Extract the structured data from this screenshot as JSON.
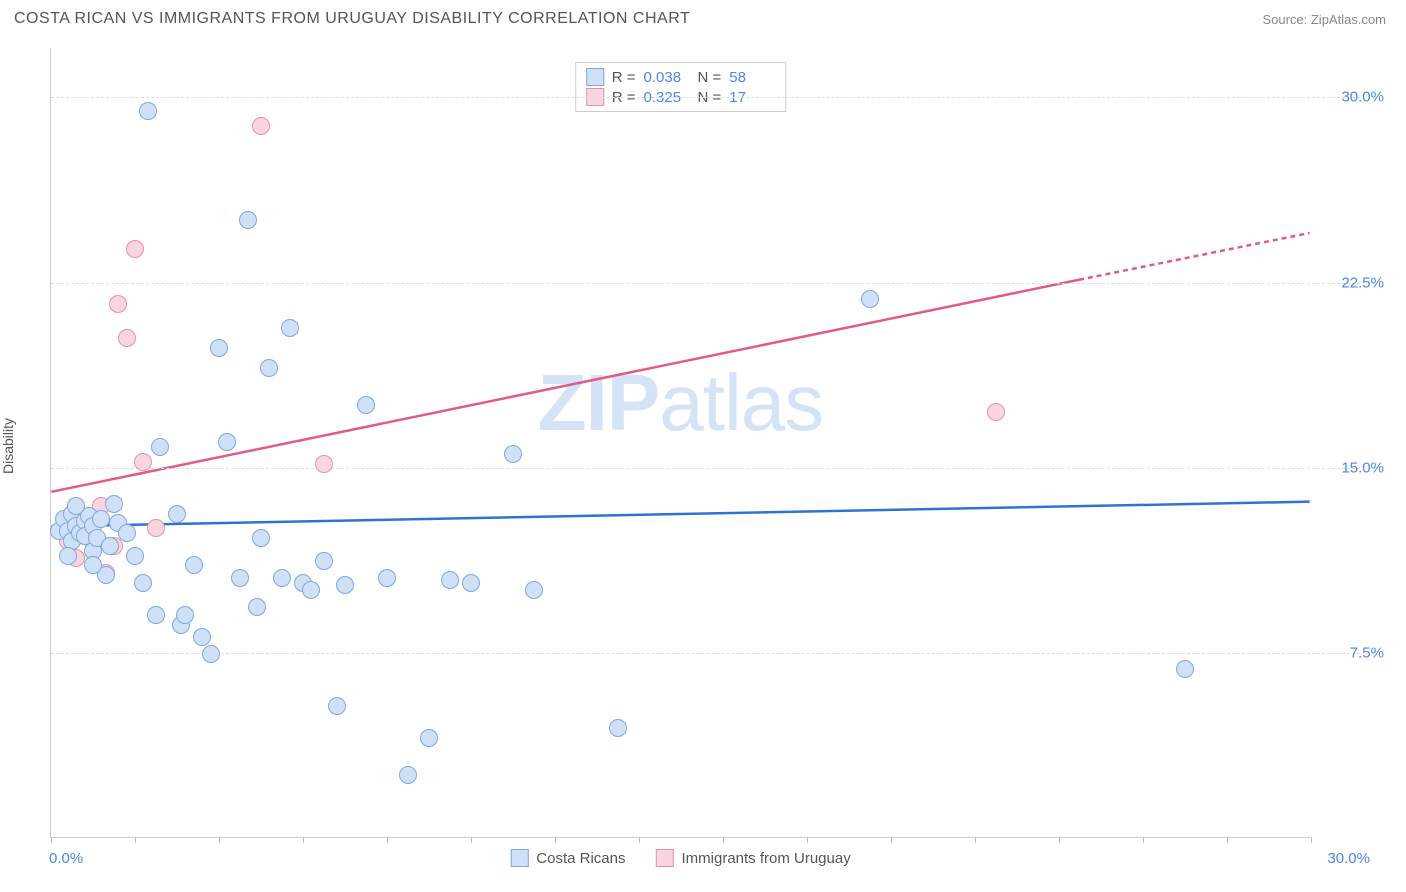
{
  "header": {
    "title": "COSTA RICAN VS IMMIGRANTS FROM URUGUAY DISABILITY CORRELATION CHART",
    "source": "Source: ZipAtlas.com"
  },
  "chart": {
    "type": "scatter",
    "ylabel": "Disability",
    "watermark_bold": "ZIP",
    "watermark_light": "atlas",
    "xlim": [
      0,
      30
    ],
    "ylim": [
      0,
      32
    ],
    "x_ticks": [
      0,
      30
    ],
    "x_tick_labels": [
      "0.0%",
      "30.0%"
    ],
    "y_gridlines": [
      7.5,
      15.0,
      22.5,
      30.0
    ],
    "y_tick_labels": [
      "7.5%",
      "15.0%",
      "22.5%",
      "30.0%"
    ],
    "xtick_minor": [
      0,
      2,
      4,
      6,
      8,
      10,
      12,
      14,
      16,
      18,
      20,
      22,
      24,
      26,
      28,
      30
    ],
    "background_color": "#ffffff",
    "grid_color": "#dddddd",
    "axis_color": "#cccccc",
    "series": [
      {
        "key": "a",
        "label": "Costa Ricans",
        "R": "0.038",
        "N": "58",
        "fill": "#cfe0f7",
        "stroke": "#7ea9e0",
        "trend_color": "#2f74d0",
        "trend": {
          "x1": 0,
          "y1": 12.6,
          "x2": 30,
          "y2": 13.6
        },
        "marker_r": 9,
        "points": [
          [
            0.2,
            12.4
          ],
          [
            0.3,
            12.9
          ],
          [
            0.4,
            12.4
          ],
          [
            0.5,
            13.1
          ],
          [
            0.5,
            12.0
          ],
          [
            0.6,
            12.6
          ],
          [
            0.7,
            12.3
          ],
          [
            0.8,
            12.8
          ],
          [
            0.8,
            12.2
          ],
          [
            0.9,
            13.0
          ],
          [
            1.0,
            12.6
          ],
          [
            1.0,
            11.6
          ],
          [
            1.1,
            12.1
          ],
          [
            1.2,
            12.9
          ],
          [
            1.3,
            10.6
          ],
          [
            1.4,
            11.8
          ],
          [
            1.5,
            13.5
          ],
          [
            1.6,
            12.7
          ],
          [
            1.8,
            12.3
          ],
          [
            2.0,
            11.4
          ],
          [
            2.2,
            10.3
          ],
          [
            2.3,
            29.4
          ],
          [
            2.5,
            9.0
          ],
          [
            2.6,
            15.8
          ],
          [
            3.0,
            13.1
          ],
          [
            3.1,
            8.6
          ],
          [
            3.2,
            9.0
          ],
          [
            3.4,
            11.0
          ],
          [
            3.6,
            8.1
          ],
          [
            3.8,
            7.4
          ],
          [
            4.0,
            19.8
          ],
          [
            4.2,
            16.0
          ],
          [
            4.5,
            10.5
          ],
          [
            4.7,
            25.0
          ],
          [
            4.9,
            9.3
          ],
          [
            5.0,
            12.1
          ],
          [
            5.2,
            19.0
          ],
          [
            5.5,
            10.5
          ],
          [
            5.7,
            20.6
          ],
          [
            6.0,
            10.3
          ],
          [
            6.2,
            10.0
          ],
          [
            6.5,
            11.2
          ],
          [
            6.8,
            5.3
          ],
          [
            7.0,
            10.2
          ],
          [
            7.5,
            17.5
          ],
          [
            8.0,
            10.5
          ],
          [
            8.5,
            2.5
          ],
          [
            9.0,
            4.0
          ],
          [
            9.5,
            10.4
          ],
          [
            10.0,
            10.3
          ],
          [
            11.0,
            15.5
          ],
          [
            11.5,
            10.0
          ],
          [
            13.5,
            4.4
          ],
          [
            19.5,
            21.8
          ],
          [
            27.0,
            6.8
          ],
          [
            0.4,
            11.4
          ],
          [
            0.6,
            13.4
          ],
          [
            1.0,
            11.0
          ]
        ]
      },
      {
        "key": "b",
        "label": "Immigrants from Uruguay",
        "R": "0.325",
        "N": "17",
        "fill": "#f9d5df",
        "stroke": "#e890a8",
        "trend_color": "#e35a82",
        "trend": {
          "x1": 0,
          "y1": 14.0,
          "x2": 24.5,
          "y2": 22.6
        },
        "trend_dash": {
          "x1": 24.5,
          "y1": 22.6,
          "x2": 30,
          "y2": 24.5
        },
        "marker_r": 9,
        "points": [
          [
            0.3,
            12.5
          ],
          [
            0.4,
            12.0
          ],
          [
            0.6,
            11.3
          ],
          [
            0.7,
            12.6
          ],
          [
            0.8,
            12.3
          ],
          [
            1.0,
            12.0
          ],
          [
            1.2,
            13.4
          ],
          [
            1.3,
            10.7
          ],
          [
            1.5,
            11.8
          ],
          [
            1.6,
            21.6
          ],
          [
            1.8,
            20.2
          ],
          [
            2.0,
            23.8
          ],
          [
            2.2,
            15.2
          ],
          [
            2.5,
            12.5
          ],
          [
            5.0,
            28.8
          ],
          [
            6.5,
            15.1
          ],
          [
            22.5,
            17.2
          ]
        ]
      }
    ],
    "statsbox": {
      "R_label": "R =",
      "N_label": "N ="
    }
  }
}
